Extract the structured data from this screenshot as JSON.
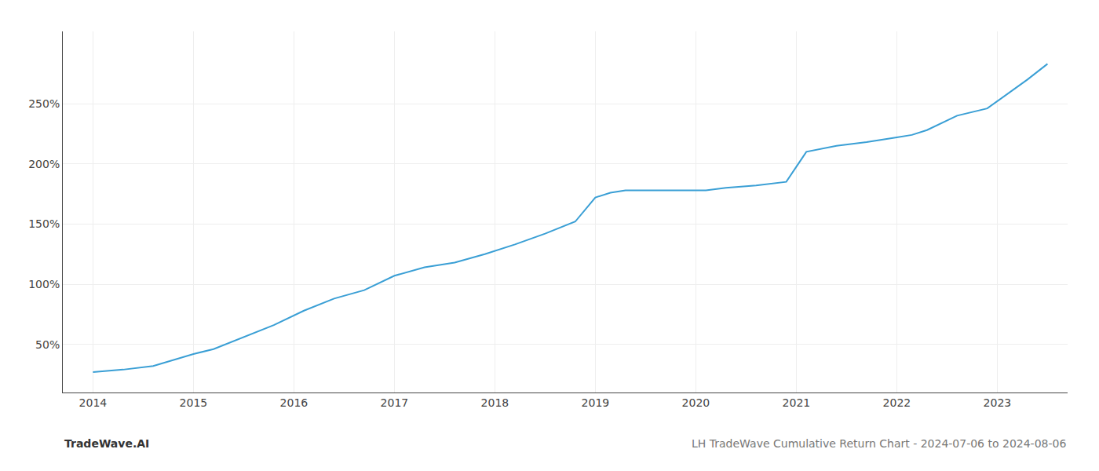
{
  "chart_data": {
    "type": "line",
    "x": [
      2014.0,
      2014.3,
      2014.6,
      2015.0,
      2015.2,
      2015.5,
      2015.8,
      2016.1,
      2016.4,
      2016.7,
      2017.0,
      2017.3,
      2017.6,
      2017.9,
      2018.2,
      2018.5,
      2018.8,
      2019.0,
      2019.15,
      2019.3,
      2019.6,
      2019.9,
      2020.1,
      2020.3,
      2020.6,
      2020.9,
      2021.1,
      2021.4,
      2021.7,
      2022.0,
      2022.15,
      2022.3,
      2022.6,
      2022.9,
      2023.0,
      2023.3,
      2023.5
    ],
    "values": [
      27,
      29,
      32,
      42,
      46,
      56,
      66,
      78,
      88,
      95,
      107,
      114,
      118,
      125,
      133,
      142,
      152,
      172,
      176,
      178,
      178,
      178,
      178,
      180,
      182,
      185,
      210,
      215,
      218,
      222,
      224,
      228,
      240,
      246,
      252,
      270,
      283
    ],
    "color": "#3a9fd5",
    "xlim": [
      2013.7,
      2023.7
    ],
    "ylim": [
      10,
      310
    ],
    "xticks": [
      2014,
      2015,
      2016,
      2017,
      2018,
      2019,
      2020,
      2021,
      2022,
      2023
    ],
    "yticks": [
      {
        "value": 50,
        "label": "50%"
      },
      {
        "value": 100,
        "label": "100%"
      },
      {
        "value": 150,
        "label": "150%"
      },
      {
        "value": 200,
        "label": "200%"
      },
      {
        "value": 250,
        "label": "250%"
      }
    ],
    "grid": true,
    "annotations": [
      "TradeWave.AI",
      "LH TradeWave Cumulative Return Chart - 2024-07-06 to 2024-08-06"
    ]
  }
}
